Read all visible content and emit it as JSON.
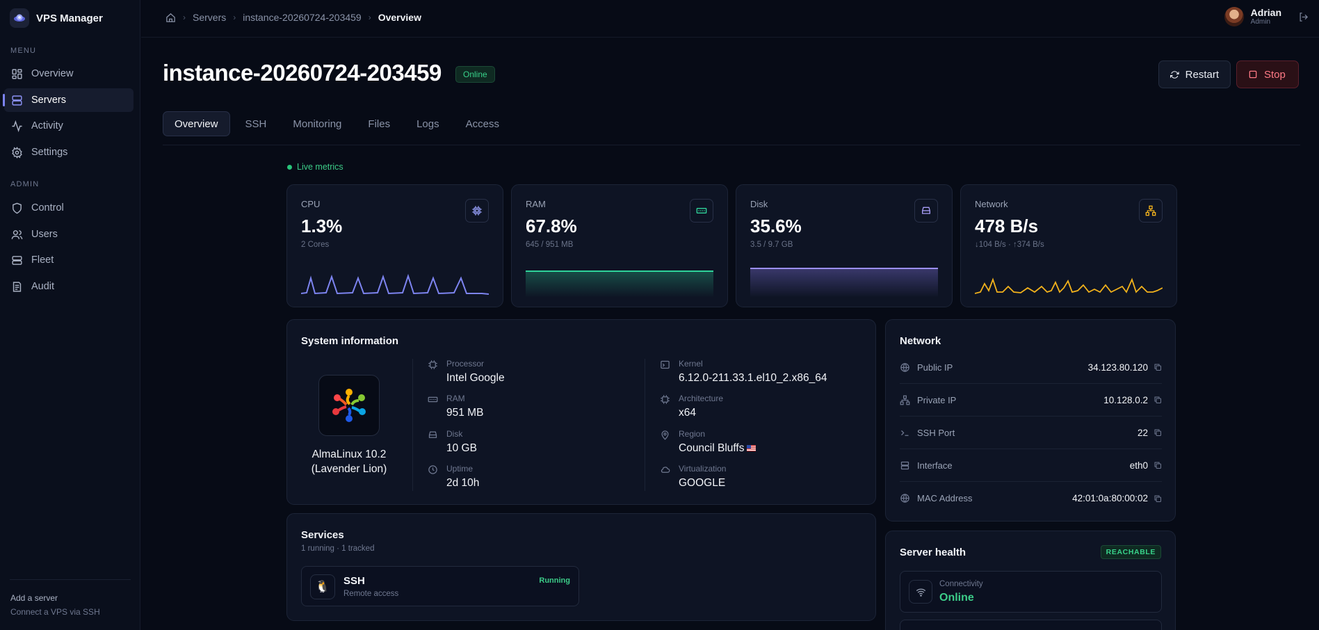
{
  "app": {
    "name": "VPS Manager"
  },
  "sidebar": {
    "menu_heading": "MENU",
    "admin_heading": "ADMIN",
    "menu_items": [
      {
        "label": "Overview",
        "icon": "dashboard-icon"
      },
      {
        "label": "Servers",
        "icon": "servers-icon",
        "active": true
      },
      {
        "label": "Activity",
        "icon": "activity-icon"
      },
      {
        "label": "Settings",
        "icon": "gear-icon"
      }
    ],
    "admin_items": [
      {
        "label": "Control",
        "icon": "shield-icon"
      },
      {
        "label": "Users",
        "icon": "users-icon"
      },
      {
        "label": "Fleet",
        "icon": "fleet-icon"
      },
      {
        "label": "Audit",
        "icon": "audit-icon"
      }
    ],
    "footer": {
      "title": "Add a server",
      "subtitle": "Connect a VPS via SSH"
    }
  },
  "breadcrumb": {
    "items": [
      "Servers",
      "instance-20260724-203459"
    ],
    "current": "Overview"
  },
  "user": {
    "name": "Adrian",
    "role": "Admin"
  },
  "header": {
    "title": "instance-20260724-203459",
    "status": "Online",
    "restart_label": "Restart",
    "stop_label": "Stop"
  },
  "tabs": [
    "Overview",
    "SSH",
    "Monitoring",
    "Files",
    "Logs",
    "Access"
  ],
  "live_label": "Live metrics",
  "metrics": {
    "cpu": {
      "label": "CPU",
      "value": "1.3%",
      "sub": "2 Cores",
      "color": "#7d84f0"
    },
    "ram": {
      "label": "RAM",
      "value": "67.8%",
      "sub": "645 / 951 MB",
      "color": "#2fd39a"
    },
    "disk": {
      "label": "Disk",
      "value": "35.6%",
      "sub": "3.5 / 9.7 GB",
      "color": "#8a7cf0"
    },
    "network": {
      "label": "Network",
      "value": "478 B/s",
      "sub": "↓104 B/s · ↑374 B/s",
      "color": "#f2b21c"
    }
  },
  "system": {
    "title": "System information",
    "os": "AlmaLinux 10.2 (Lavender Lion)",
    "fields": {
      "processor": {
        "label": "Processor",
        "value": "Intel Google"
      },
      "ram": {
        "label": "RAM",
        "value": "951 MB"
      },
      "disk": {
        "label": "Disk",
        "value": "10 GB"
      },
      "uptime": {
        "label": "Uptime",
        "value": "2d 10h"
      },
      "kernel": {
        "label": "Kernel",
        "value": "6.12.0-211.33.1.el10_2.x86_64"
      },
      "arch": {
        "label": "Architecture",
        "value": "x64"
      },
      "region": {
        "label": "Region",
        "value": "Council Bluffs"
      },
      "virt": {
        "label": "Virtualization",
        "value": "GOOGLE"
      }
    }
  },
  "network": {
    "title": "Network",
    "rows": [
      {
        "label": "Public IP",
        "value": "34.123.80.120"
      },
      {
        "label": "Private IP",
        "value": "10.128.0.2"
      },
      {
        "label": "SSH Port",
        "value": "22"
      },
      {
        "label": "Interface",
        "value": "eth0"
      },
      {
        "label": "MAC Address",
        "value": "42:01:0a:80:00:02"
      }
    ]
  },
  "services": {
    "title": "Services",
    "subtitle": "1 running · 1 tracked",
    "items": [
      {
        "name": "SSH",
        "desc": "Remote access",
        "status": "Running"
      }
    ]
  },
  "health": {
    "title": "Server health",
    "badge": "REACHABLE",
    "connectivity": {
      "label": "Connectivity",
      "value": "Online"
    }
  }
}
